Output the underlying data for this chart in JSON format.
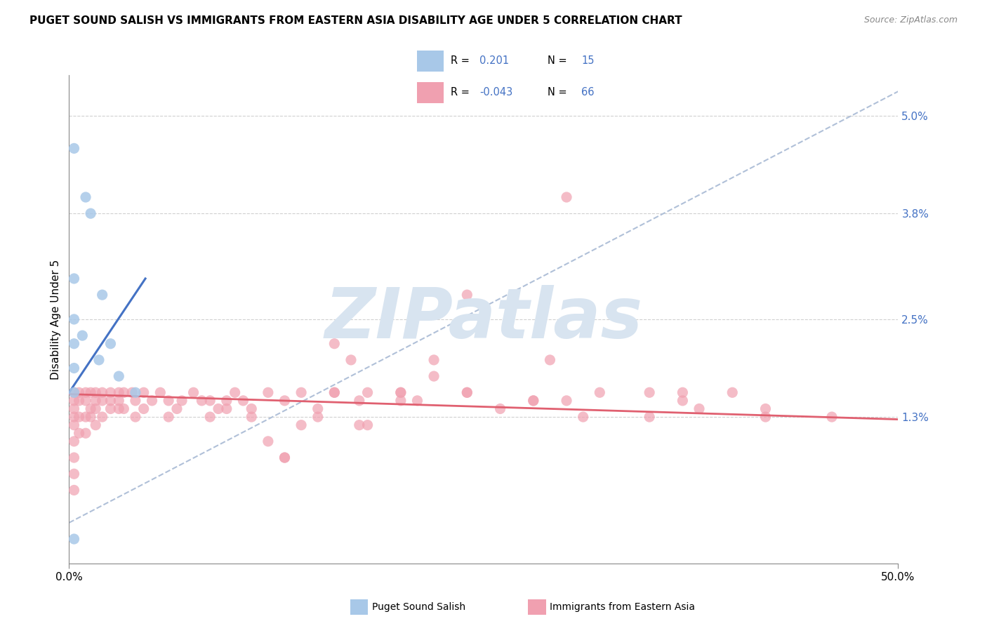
{
  "title": "PUGET SOUND SALISH VS IMMIGRANTS FROM EASTERN ASIA DISABILITY AGE UNDER 5 CORRELATION CHART",
  "source": "Source: ZipAtlas.com",
  "ylabel": "Disability Age Under 5",
  "xmin": 0.0,
  "xmax": 0.5,
  "ymin": -0.005,
  "ymax": 0.055,
  "ytick_vals": [
    0.013,
    0.025,
    0.038,
    0.05
  ],
  "ytick_labels": [
    "1.3%",
    "2.5%",
    "3.8%",
    "5.0%"
  ],
  "xtick_vals": [
    0.0,
    0.5
  ],
  "xtick_labels": [
    "0.0%",
    "50.0%"
  ],
  "color_blue": "#a8c8e8",
  "color_pink": "#f0a0b0",
  "trendline_blue": "#4472c4",
  "trendline_pink": "#e06070",
  "trendline_gray": "#b0c0d8",
  "grid_color": "#d0d0d0",
  "watermark_text": "ZIPatlas",
  "watermark_color": "#d8e4f0",
  "legend_color": "#4472c4",
  "blue_scatter_x": [
    0.003,
    0.01,
    0.013,
    0.003,
    0.02,
    0.003,
    0.003,
    0.003,
    0.003,
    0.008,
    0.018,
    0.03,
    0.04,
    0.025,
    0.003
  ],
  "blue_scatter_y": [
    0.046,
    0.04,
    0.038,
    0.03,
    0.028,
    0.025,
    0.022,
    0.019,
    0.016,
    0.023,
    0.02,
    0.018,
    0.016,
    0.022,
    -0.002
  ],
  "pink_scatter_x": [
    0.003,
    0.003,
    0.003,
    0.003,
    0.003,
    0.003,
    0.003,
    0.003,
    0.003,
    0.006,
    0.006,
    0.006,
    0.006,
    0.01,
    0.01,
    0.01,
    0.01,
    0.013,
    0.013,
    0.013,
    0.016,
    0.016,
    0.016,
    0.016,
    0.02,
    0.02,
    0.02,
    0.025,
    0.025,
    0.025,
    0.03,
    0.03,
    0.03,
    0.033,
    0.033,
    0.038,
    0.04,
    0.04,
    0.045,
    0.045,
    0.05,
    0.055,
    0.06,
    0.065,
    0.068,
    0.075,
    0.08,
    0.085,
    0.09,
    0.095,
    0.1,
    0.105,
    0.11,
    0.12,
    0.13,
    0.14,
    0.15,
    0.16,
    0.17,
    0.175,
    0.18,
    0.2,
    0.21,
    0.22,
    0.24,
    0.28,
    0.3,
    0.13,
    0.18,
    0.22,
    0.3,
    0.35,
    0.24,
    0.16,
    0.095,
    0.38,
    0.29,
    0.24,
    0.2,
    0.15,
    0.35,
    0.4,
    0.13,
    0.28,
    0.32,
    0.37,
    0.42,
    0.46,
    0.16,
    0.12,
    0.2,
    0.26,
    0.31,
    0.37,
    0.42,
    0.06,
    0.085,
    0.11,
    0.14,
    0.175
  ],
  "pink_scatter_y": [
    0.016,
    0.015,
    0.014,
    0.013,
    0.012,
    0.01,
    0.008,
    0.006,
    0.004,
    0.016,
    0.015,
    0.013,
    0.011,
    0.016,
    0.015,
    0.013,
    0.011,
    0.016,
    0.014,
    0.013,
    0.016,
    0.015,
    0.014,
    0.012,
    0.016,
    0.015,
    0.013,
    0.016,
    0.015,
    0.014,
    0.016,
    0.015,
    0.014,
    0.016,
    0.014,
    0.016,
    0.015,
    0.013,
    0.016,
    0.014,
    0.015,
    0.016,
    0.015,
    0.014,
    0.015,
    0.016,
    0.015,
    0.015,
    0.014,
    0.015,
    0.016,
    0.015,
    0.014,
    0.01,
    0.015,
    0.016,
    0.014,
    0.016,
    0.02,
    0.015,
    0.016,
    0.016,
    0.015,
    0.018,
    0.016,
    0.015,
    0.015,
    0.008,
    0.012,
    0.02,
    0.04,
    0.016,
    0.028,
    0.022,
    0.014,
    0.014,
    0.02,
    0.016,
    0.016,
    0.013,
    0.013,
    0.016,
    0.008,
    0.015,
    0.016,
    0.016,
    0.014,
    0.013,
    0.016,
    0.016,
    0.015,
    0.014,
    0.013,
    0.015,
    0.013,
    0.013,
    0.013,
    0.013,
    0.012,
    0.012
  ],
  "blue_trendline_x": [
    0.0,
    0.046
  ],
  "blue_trendline_y": [
    0.016,
    0.03
  ],
  "pink_trendline_x": [
    0.0,
    0.5
  ],
  "pink_trendline_y": [
    0.0158,
    0.0127
  ],
  "gray_trendline_x": [
    0.0,
    0.5
  ],
  "gray_trendline_y": [
    0.0,
    0.053
  ]
}
